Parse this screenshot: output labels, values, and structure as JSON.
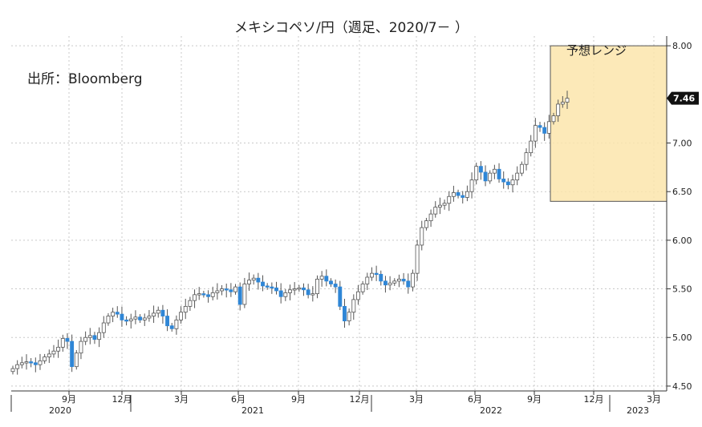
{
  "chart_data": {
    "type": "candlestick",
    "title": "メキシコペソ/円（週足、2020/7－ ）",
    "source": "出所：Bloomberg",
    "forecast_label": "予想レンジ",
    "forecast_range": [
      6.4,
      8.0
    ],
    "last_value_label": "7.46",
    "ylim": [
      4.45,
      8.1
    ],
    "yticks": [
      "4.50",
      "5.00",
      "5.50",
      "6.00",
      "6.50",
      "7.00",
      "8.00"
    ],
    "ytick_values": [
      4.5,
      5.0,
      5.5,
      6.0,
      6.5,
      7.0,
      8.0
    ],
    "month_ticks": [
      "9月",
      "12月",
      "3月",
      "6月",
      "9月",
      "12月",
      "3月",
      "6月",
      "9月",
      "12月",
      "3月"
    ],
    "year_labels": [
      "2020",
      "2021",
      "2022",
      "2023"
    ],
    "grid": true,
    "colors": {
      "up": "#ffffff",
      "down": "#2f86d6",
      "outline": "#555555",
      "forecast_fill": "#fce5ab",
      "forecast_stroke": "#555555",
      "badge": "#111111"
    },
    "closes": [
      4.68,
      4.72,
      4.74,
      4.75,
      4.74,
      4.72,
      4.76,
      4.8,
      4.83,
      4.86,
      4.9,
      4.99,
      4.96,
      4.7,
      4.84,
      4.96,
      5.0,
      5.02,
      4.98,
      5.05,
      5.15,
      5.22,
      5.26,
      5.24,
      5.18,
      5.17,
      5.19,
      5.21,
      5.18,
      5.2,
      5.22,
      5.25,
      5.28,
      5.22,
      5.12,
      5.09,
      5.18,
      5.26,
      5.32,
      5.38,
      5.44,
      5.45,
      5.44,
      5.42,
      5.46,
      5.48,
      5.5,
      5.49,
      5.47,
      5.52,
      5.34,
      5.55,
      5.59,
      5.61,
      5.57,
      5.53,
      5.52,
      5.51,
      5.48,
      5.42,
      5.46,
      5.49,
      5.5,
      5.51,
      5.49,
      5.44,
      5.45,
      5.6,
      5.63,
      5.58,
      5.55,
      5.52,
      5.32,
      5.17,
      5.26,
      5.39,
      5.47,
      5.55,
      5.62,
      5.66,
      5.65,
      5.58,
      5.54,
      5.56,
      5.58,
      5.6,
      5.58,
      5.52,
      5.66,
      5.95,
      6.13,
      6.2,
      6.27,
      6.34,
      6.36,
      6.38,
      6.45,
      6.49,
      6.46,
      6.44,
      6.5,
      6.62,
      6.76,
      6.7,
      6.61,
      6.69,
      6.73,
      6.63,
      6.6,
      6.57,
      6.62,
      6.69,
      6.78,
      6.9,
      7.02,
      7.18,
      7.16,
      7.1,
      7.22,
      7.28,
      7.4,
      7.42,
      7.46
    ]
  }
}
